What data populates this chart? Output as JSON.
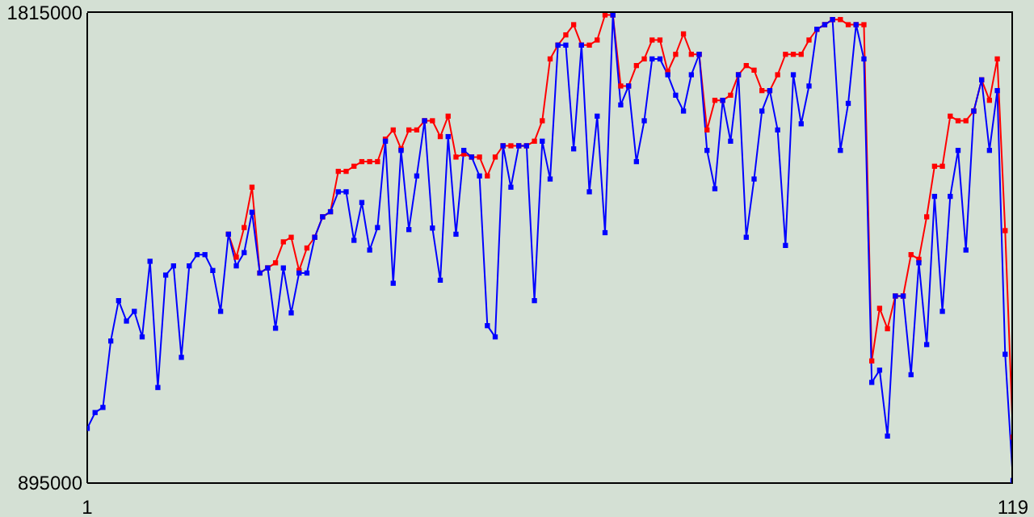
{
  "chart_data": {
    "type": "line",
    "x": [
      1,
      2,
      3,
      4,
      5,
      6,
      7,
      8,
      9,
      10,
      11,
      12,
      13,
      14,
      15,
      16,
      17,
      18,
      19,
      20,
      21,
      22,
      23,
      24,
      25,
      26,
      27,
      28,
      29,
      30,
      31,
      32,
      33,
      34,
      35,
      36,
      37,
      38,
      39,
      40,
      41,
      42,
      43,
      44,
      45,
      46,
      47,
      48,
      49,
      50,
      51,
      52,
      53,
      54,
      55,
      56,
      57,
      58,
      59,
      60,
      61,
      62,
      63,
      64,
      65,
      66,
      67,
      68,
      69,
      70,
      71,
      72,
      73,
      74,
      75,
      76,
      77,
      78,
      79,
      80,
      81,
      82,
      83,
      84,
      85,
      86,
      87,
      88,
      89,
      90,
      91,
      92,
      93,
      94,
      95,
      96,
      97,
      98,
      99,
      100,
      101,
      102,
      103,
      104,
      105,
      106,
      107,
      108,
      109,
      110,
      111,
      112,
      113,
      114,
      115,
      116,
      117,
      118,
      119
    ],
    "series": [
      {
        "color": "#ff0000",
        "values": [
          null,
          null,
          null,
          null,
          null,
          null,
          null,
          null,
          null,
          null,
          null,
          null,
          null,
          null,
          null,
          null,
          null,
          null,
          1382000,
          1337000,
          1395000,
          1474000,
          1306000,
          1316000,
          1326000,
          1367000,
          1376000,
          1311000,
          1355000,
          1376000,
          1416000,
          1426000,
          1505000,
          1505000,
          1515000,
          1524000,
          1524000,
          1524000,
          1568000,
          1586000,
          1549000,
          1586000,
          1586000,
          1604000,
          1604000,
          1573000,
          1613000,
          1533000,
          1539000,
          1533000,
          1533000,
          1496000,
          1533000,
          1555000,
          1555000,
          1555000,
          1555000,
          1564000,
          1604000,
          1725000,
          1752000,
          1772000,
          1792000,
          1752000,
          1752000,
          1762000,
          1811000,
          1811000,
          1672000,
          1672000,
          1712000,
          1725000,
          1762000,
          1762000,
          1700000,
          1734000,
          1774000,
          1734000,
          1734000,
          1586000,
          1644000,
          1644000,
          1654000,
          1694000,
          1712000,
          1703000,
          1663000,
          1663000,
          1694000,
          1734000,
          1734000,
          1734000,
          1762000,
          1783000,
          1792000,
          1802000,
          1802000,
          1792000,
          1792000,
          1792000,
          1134000,
          1237000,
          1197000,
          1261000,
          1261000,
          1342000,
          1333000,
          1416000,
          1515000,
          1515000,
          1613000,
          1604000,
          1604000,
          1623000,
          1684000,
          1644000,
          1725000,
          1389000,
          985000
        ]
      },
      {
        "color": "#0000ff",
        "values": [
          1002000,
          1033000,
          1043000,
          1173000,
          1252000,
          1212000,
          1231000,
          1181000,
          1329000,
          1082000,
          1302000,
          1320000,
          1141000,
          1320000,
          1342000,
          1342000,
          1311000,
          1231000,
          1382000,
          1320000,
          1346000,
          1425000,
          1306000,
          1316000,
          1198000,
          1316000,
          1228000,
          1306000,
          1306000,
          1376000,
          1416000,
          1426000,
          1465000,
          1465000,
          1370000,
          1444000,
          1351000,
          1395000,
          1564000,
          1286000,
          1546000,
          1391000,
          1496000,
          1604000,
          1394000,
          1292000,
          1573000,
          1382000,
          1546000,
          1533000,
          1496000,
          1203000,
          1181000,
          1555000,
          1474000,
          1555000,
          1555000,
          1252000,
          1564000,
          1490000,
          1752000,
          1752000,
          1549000,
          1752000,
          1465000,
          1613000,
          1385000,
          1811000,
          1635000,
          1672000,
          1524000,
          1604000,
          1725000,
          1725000,
          1694000,
          1654000,
          1623000,
          1694000,
          1734000,
          1546000,
          1471000,
          1644000,
          1564000,
          1694000,
          1376000,
          1490000,
          1623000,
          1663000,
          1586000,
          1360000,
          1694000,
          1598000,
          1672000,
          1783000,
          1792000,
          1802000,
          1546000,
          1638000,
          1792000,
          1725000,
          1092000,
          1116000,
          987000,
          1261000,
          1261000,
          1107000,
          1326000,
          1166000,
          1456000,
          1231000,
          1456000,
          1546000,
          1351000,
          1623000,
          1684000,
          1546000,
          1663000,
          1147000,
          900000
        ]
      }
    ],
    "xlim": [
      1,
      119
    ],
    "xticks": [
      1,
      119
    ],
    "ylim": [
      895000,
      1815000
    ],
    "yticks": [
      895000,
      1815000
    ],
    "marker": "square",
    "line_style": "solid"
  }
}
